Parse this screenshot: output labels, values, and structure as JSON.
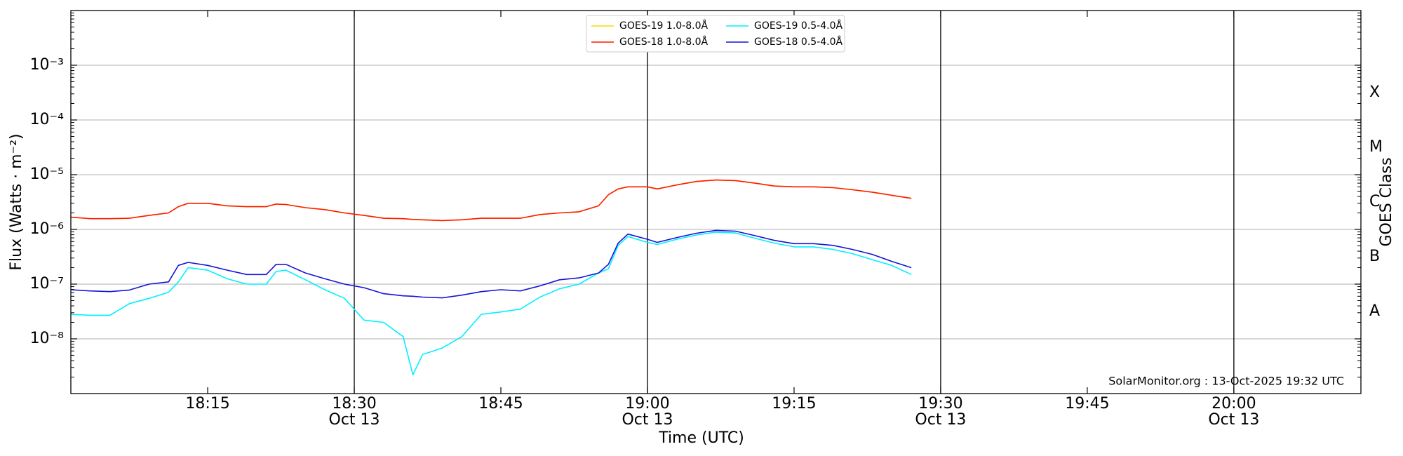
{
  "chart_data": {
    "type": "line",
    "ylabel": "Flux (Watts · m⁻²)",
    "xlabel": "Time (UTC)",
    "y2label": "GOES Class",
    "annotation": "SolarMonitor.org : 13-Oct-2025 19:32 UTC",
    "log_y": true,
    "grid": "y",
    "legend": "upper center",
    "legend_ncol": 2,
    "xlim": [
      "18:01",
      "20:13"
    ],
    "xticks": [
      "18:15",
      {
        "value": "18:30",
        "label": [
          "18:30",
          "Oct 13"
        ]
      },
      "18:45",
      {
        "value": "19:00",
        "label": [
          "19:00",
          "Oct 13"
        ]
      },
      "19:15",
      {
        "value": "19:30",
        "label": [
          "19:30",
          "Oct 13"
        ]
      },
      "19:45",
      {
        "value": "20:00",
        "label": [
          "20:00",
          "Oct 13"
        ]
      }
    ],
    "ylim": [
      1e-09,
      0.01
    ],
    "yticks": [
      {
        "value": 1e-08,
        "label": "10⁻⁸"
      },
      {
        "value": 1e-07,
        "label": "10⁻⁷"
      },
      {
        "value": 1e-06,
        "label": "10⁻⁶"
      },
      {
        "value": 1e-05,
        "label": "10⁻⁵"
      },
      {
        "value": 0.0001,
        "label": "10⁻⁴"
      },
      {
        "value": 0.001,
        "label": "10⁻³"
      }
    ],
    "y2lim": [
      1e-09,
      0.01
    ],
    "y2ticks": [
      {
        "value": 3.16e-08,
        "label": "A"
      },
      {
        "value": 3.16e-07,
        "label": "B"
      },
      {
        "value": 3.16e-06,
        "label": "C"
      },
      {
        "value": 3.16e-05,
        "label": "M"
      },
      {
        "value": 0.000316,
        "label": "X"
      }
    ],
    "x": [
      "18:01",
      "18:03",
      "18:05",
      "18:07",
      "18:09",
      "18:11",
      "18:12",
      "18:13",
      "18:15",
      "18:17",
      "18:19",
      "18:21",
      "18:22",
      "18:23",
      "18:25",
      "18:27",
      "18:29",
      "18:31",
      "18:33",
      "18:35",
      "18:36",
      "18:37",
      "18:39",
      "18:41",
      "18:43",
      "18:45",
      "18:47",
      "18:49",
      "18:51",
      "18:53",
      "18:55",
      "18:56",
      "18:57",
      "18:58",
      "19:00",
      "19:01",
      "19:03",
      "19:05",
      "19:07",
      "19:09",
      "19:11",
      "19:13",
      "19:15",
      "19:17",
      "19:19",
      "19:21",
      "19:23",
      "19:25",
      "19:27"
    ],
    "series": [
      {
        "name": "GOES-19 1.0-8.0Å",
        "color": "#ffd700",
        "values": [
          1.67e-06,
          1.57e-06,
          1.57e-06,
          1.6e-06,
          1.8e-06,
          2e-06,
          2.6e-06,
          3e-06,
          3e-06,
          2.7e-06,
          2.6e-06,
          2.6e-06,
          2.9e-06,
          2.85e-06,
          2.5e-06,
          2.3e-06,
          2e-06,
          1.8e-06,
          1.6e-06,
          1.57e-06,
          1.52e-06,
          1.5e-06,
          1.45e-06,
          1.5e-06,
          1.6e-06,
          1.6e-06,
          1.6e-06,
          1.87e-06,
          2e-06,
          2.1e-06,
          2.7e-06,
          4.3e-06,
          5.5e-06,
          6e-06,
          6e-06,
          5.5e-06,
          6.5e-06,
          7.5e-06,
          8e-06,
          7.8e-06,
          7e-06,
          6.2e-06,
          6e-06,
          6e-06,
          5.8e-06,
          5.3e-06,
          4.8e-06,
          4.2e-06,
          3.7e-06
        ]
      },
      {
        "name": "GOES-18 1.0-8.0Å",
        "color": "#ff1a00",
        "values": [
          1.67e-06,
          1.57e-06,
          1.57e-06,
          1.6e-06,
          1.8e-06,
          2e-06,
          2.6e-06,
          3e-06,
          3e-06,
          2.7e-06,
          2.6e-06,
          2.6e-06,
          2.9e-06,
          2.85e-06,
          2.5e-06,
          2.3e-06,
          2e-06,
          1.8e-06,
          1.6e-06,
          1.57e-06,
          1.52e-06,
          1.5e-06,
          1.45e-06,
          1.5e-06,
          1.6e-06,
          1.6e-06,
          1.6e-06,
          1.87e-06,
          2e-06,
          2.1e-06,
          2.7e-06,
          4.3e-06,
          5.5e-06,
          6e-06,
          6e-06,
          5.5e-06,
          6.5e-06,
          7.5e-06,
          8e-06,
          7.8e-06,
          7e-06,
          6.2e-06,
          6e-06,
          6e-06,
          5.8e-06,
          5.3e-06,
          4.8e-06,
          4.2e-06,
          3.7e-06
        ]
      },
      {
        "name": "GOES-19 0.5-4.0Å",
        "color": "#00f0ff",
        "values": [
          2.8e-08,
          2.7e-08,
          2.7e-08,
          4.4e-08,
          5.5e-08,
          7.1e-08,
          1.1e-07,
          2e-07,
          1.8e-07,
          1.25e-07,
          1e-07,
          1e-07,
          1.7e-07,
          1.8e-07,
          1.2e-07,
          7.9e-08,
          5.5e-08,
          2.2e-08,
          2e-08,
          1.1e-08,
          2.2e-09,
          5.2e-09,
          6.8e-09,
          1.1e-08,
          2.8e-08,
          3.1e-08,
          3.5e-08,
          5.8e-08,
          8.2e-08,
          1e-07,
          1.6e-07,
          1.9e-07,
          5.1e-07,
          7.4e-07,
          5.8e-07,
          5.3e-07,
          6.6e-07,
          7.9e-07,
          8.9e-07,
          8.6e-07,
          6.9e-07,
          5.6e-07,
          4.8e-07,
          4.8e-07,
          4.3e-07,
          3.6e-07,
          2.8e-07,
          2.2e-07,
          1.5e-07
        ]
      },
      {
        "name": "GOES-18 0.5-4.0Å",
        "color": "#1414d8",
        "values": [
          7.9e-08,
          7.5e-08,
          7.3e-08,
          7.8e-08,
          1e-07,
          1.1e-07,
          2.2e-07,
          2.5e-07,
          2.2e-07,
          1.8e-07,
          1.5e-07,
          1.5e-07,
          2.3e-07,
          2.3e-07,
          1.6e-07,
          1.25e-07,
          1e-07,
          8.6e-08,
          6.7e-08,
          6.1e-08,
          6e-08,
          5.8e-08,
          5.6e-08,
          6.3e-08,
          7.3e-08,
          7.9e-08,
          7.5e-08,
          9.3e-08,
          1.2e-07,
          1.3e-07,
          1.6e-07,
          2.3e-07,
          5.6e-07,
          8.2e-07,
          6.6e-07,
          5.8e-07,
          7.1e-07,
          8.5e-07,
          9.6e-07,
          9.3e-07,
          7.7e-07,
          6.3e-07,
          5.5e-07,
          5.5e-07,
          5.1e-07,
          4.3e-07,
          3.5e-07,
          2.6e-07,
          2e-07
        ]
      }
    ]
  }
}
